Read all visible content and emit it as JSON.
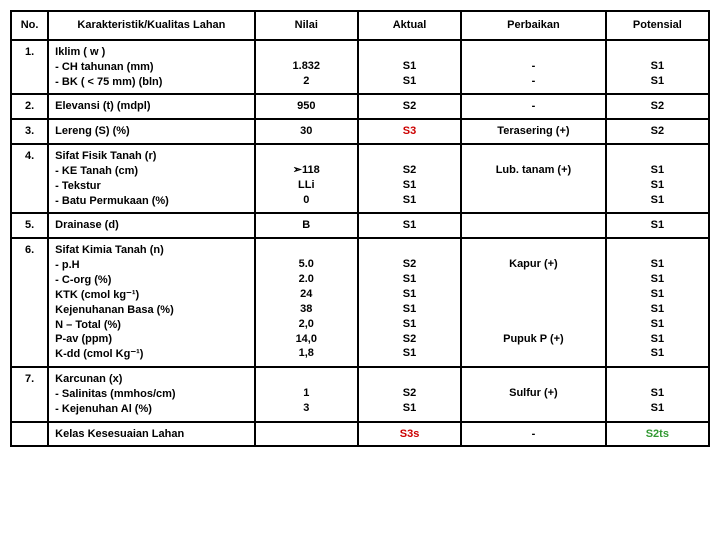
{
  "colors": {
    "border": "#000000",
    "text": "#000000",
    "red": "#cc0000",
    "green": "#339933",
    "background": "#ffffff"
  },
  "headers": {
    "no": "No.",
    "karakteristik": "Karakteristik/Kualitas Lahan",
    "nilai": "Nilai",
    "aktual": "Aktual",
    "perbaikan": "Perbaikan",
    "potensial": "Potensial"
  },
  "rows": {
    "r1": {
      "no": "1.",
      "kar_l1": "Iklim ( w )",
      "kar_l2": "- CH tahunan (mm)",
      "kar_l3": "- BK  ( < 75 mm) (bln)",
      "nilai_l1": "1.832",
      "nilai_l2": "2",
      "akt_l1": "S1",
      "akt_l2": "S1",
      "per_l1": "-",
      "per_l2": "-",
      "pot_l1": "S1",
      "pot_l2": "S1"
    },
    "r2": {
      "no": "2.",
      "kar": "Elevansi (t) (mdpl)",
      "nilai": "950",
      "akt": "S2",
      "per": "-",
      "pot": "S2"
    },
    "r3": {
      "no": "3.",
      "kar": "Lereng (S) (%)",
      "nilai": "30",
      "akt": "S3",
      "per": "Terasering (+)",
      "pot": "S2"
    },
    "r4": {
      "no": "4.",
      "kar_l1": "Sifat Fisik Tanah (r)",
      "kar_l2": "- KE Tanah (cm)",
      "kar_l3": "- Tekstur",
      "kar_l4": "- Batu Permukaan (%)",
      "nilai_l1": "➢118",
      "nilai_l2": "LLi",
      "nilai_l3": "0",
      "akt_l1": "S2",
      "akt_l2": "S1",
      "akt_l3": "S1",
      "per": "Lub. tanam (+)",
      "pot_l1": "S1",
      "pot_l2": "S1",
      "pot_l3": "S1"
    },
    "r5": {
      "no": "5.",
      "kar": "Drainase (d)",
      "nilai": "B",
      "akt": "S1",
      "per": "",
      "pot": "S1"
    },
    "r6": {
      "no": "6.",
      "kar_l1": "Sifat Kimia Tanah (n)",
      "kar_l2": "- p.H",
      "kar_l3": "- C-org (%)",
      "kar_l4": "KTK (cmol kg⁻¹)",
      "kar_l5": "Kejenuhanan Basa (%)",
      "kar_l6": "N – Total (%)",
      "kar_l7": "P-av (ppm)",
      "kar_l8": "K-dd (cmol Kg⁻¹)",
      "nilai_l1": "5.0",
      "nilai_l2": "2.0",
      "nilai_l3": "24",
      "nilai_l4": "38",
      "nilai_l5": "2,0",
      "nilai_l6": "14,0",
      "nilai_l7": "1,8",
      "akt_l1": "S2",
      "akt_l2": "S1",
      "akt_l3": "S1",
      "akt_l4": "S1",
      "akt_l5": "S1",
      "akt_l6": "S2",
      "akt_l7": "S1",
      "per_l1": "Kapur (+)",
      "per_l2": "Pupuk P (+)",
      "pot_l1": "S1",
      "pot_l2": "S1",
      "pot_l3": "S1",
      "pot_l4": "S1",
      "pot_l5": "S1",
      "pot_l6": "S1",
      "pot_l7": "S1"
    },
    "r7": {
      "no": "7.",
      "kar_l1": "Karcunan (x)",
      "kar_l2": "- Salinitas (mmhos/cm)",
      "kar_l3": "- Kejenuhan Al (%)",
      "nilai_l1": "1",
      "nilai_l2": "3",
      "akt_l1": "S2",
      "akt_l2": "S1",
      "per": "Sulfur (+)",
      "pot_l1": "S1",
      "pot_l2": "S1"
    },
    "r8": {
      "kar": "Kelas Kesesuaian Lahan",
      "akt": "S3s",
      "per": "-",
      "pot": "S2ts"
    }
  }
}
